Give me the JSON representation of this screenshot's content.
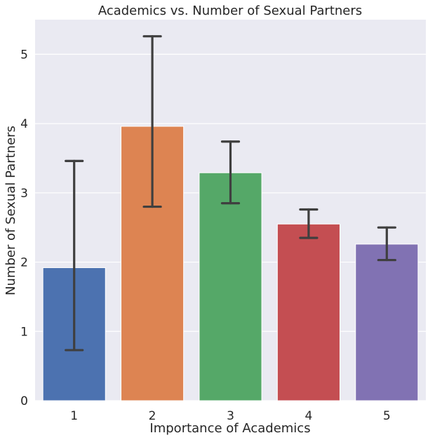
{
  "chart_data": {
    "type": "bar",
    "title": "Academics vs. Number of Sexual Partners",
    "xlabel": "Importance of Academics",
    "ylabel": "Number of Sexual Partners",
    "categories": [
      "1",
      "2",
      "3",
      "4",
      "5"
    ],
    "values": [
      1.92,
      3.96,
      3.29,
      2.55,
      2.26
    ],
    "error_low": [
      0.73,
      2.8,
      2.85,
      2.35,
      2.03
    ],
    "error_high": [
      3.46,
      5.26,
      3.74,
      2.76,
      2.5
    ],
    "ylim": [
      0,
      5.5
    ],
    "yticks": [
      "0",
      "1",
      "2",
      "3",
      "4",
      "5"
    ],
    "grid": true,
    "colors": [
      "#4c72b0",
      "#dd8452",
      "#55a868",
      "#c44e52",
      "#8172b3"
    ],
    "background": "#eaeaf2",
    "error_color": "#3f3f3f"
  }
}
